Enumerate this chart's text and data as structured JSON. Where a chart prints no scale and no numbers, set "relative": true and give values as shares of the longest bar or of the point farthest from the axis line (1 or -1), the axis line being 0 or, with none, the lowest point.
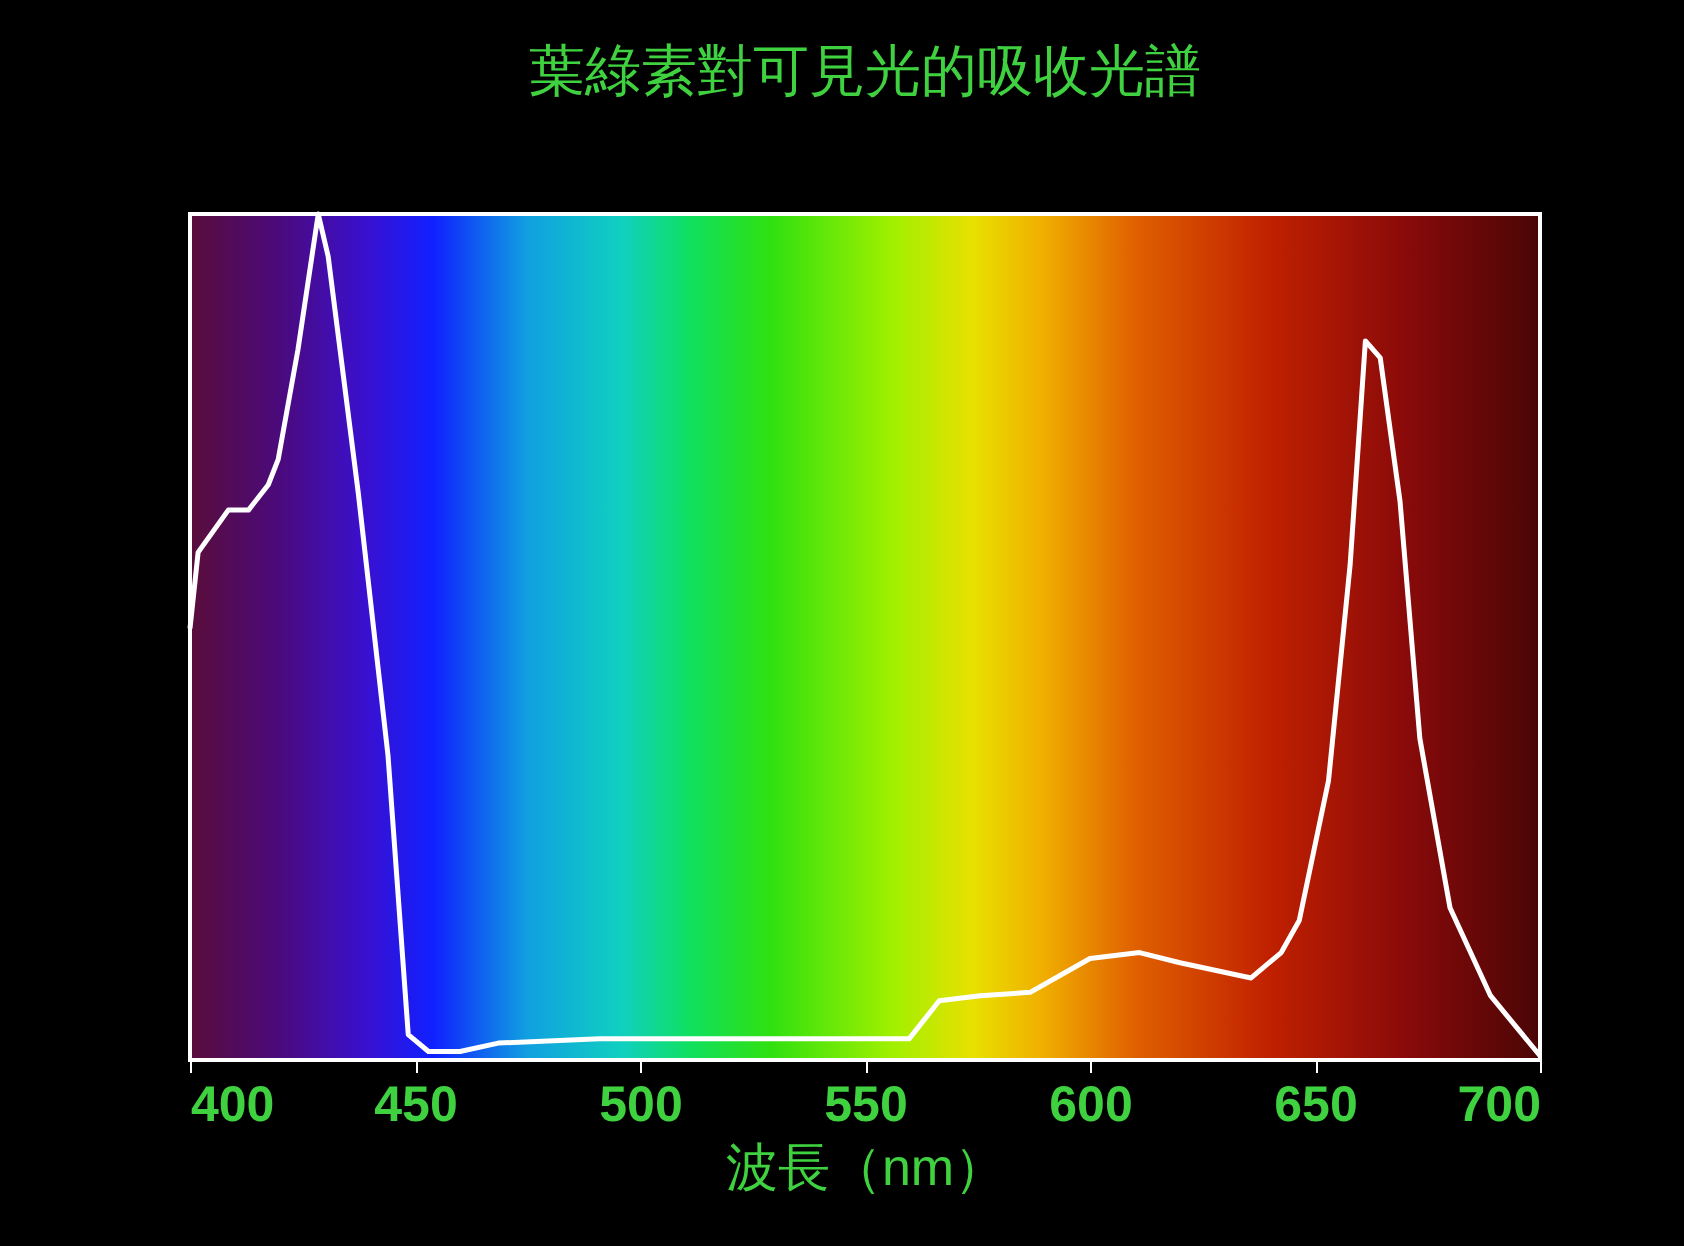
{
  "chart_data": {
    "type": "line",
    "title": "葉綠素對可見光的吸收光譜",
    "xlabel": "波長（nm）",
    "relative": true,
    "xlim": [
      400,
      700
    ],
    "xticks": [
      400,
      450,
      500,
      550,
      600,
      650,
      700
    ],
    "x": [
      400,
      401.8,
      408.5,
      413,
      417.4,
      419.6,
      424,
      428.5,
      430.7,
      437.4,
      444,
      448.5,
      453,
      460,
      468.5,
      491,
      520,
      559.8,
      566.5,
      575.6,
      586.7,
      600,
      611,
      620,
      635.8,
      642.5,
      646.5,
      653,
      657.8,
      661.2,
      664.5,
      668.9,
      673.3,
      680,
      689,
      700
    ],
    "series": [
      {
        "color": "#ffffff",
        "values": [
          0.51,
          0.6,
          0.65,
          0.65,
          0.68,
          0.71,
          0.84,
          1.0,
          0.95,
          0.67,
          0.36,
          0.03,
          0.01,
          0.01,
          0.02,
          0.025,
          0.025,
          0.025,
          0.07,
          0.076,
          0.08,
          0.12,
          0.127,
          0.115,
          0.097,
          0.127,
          0.165,
          0.33,
          0.585,
          0.85,
          0.83,
          0.66,
          0.38,
          0.18,
          0.076,
          0.005
        ]
      }
    ]
  }
}
